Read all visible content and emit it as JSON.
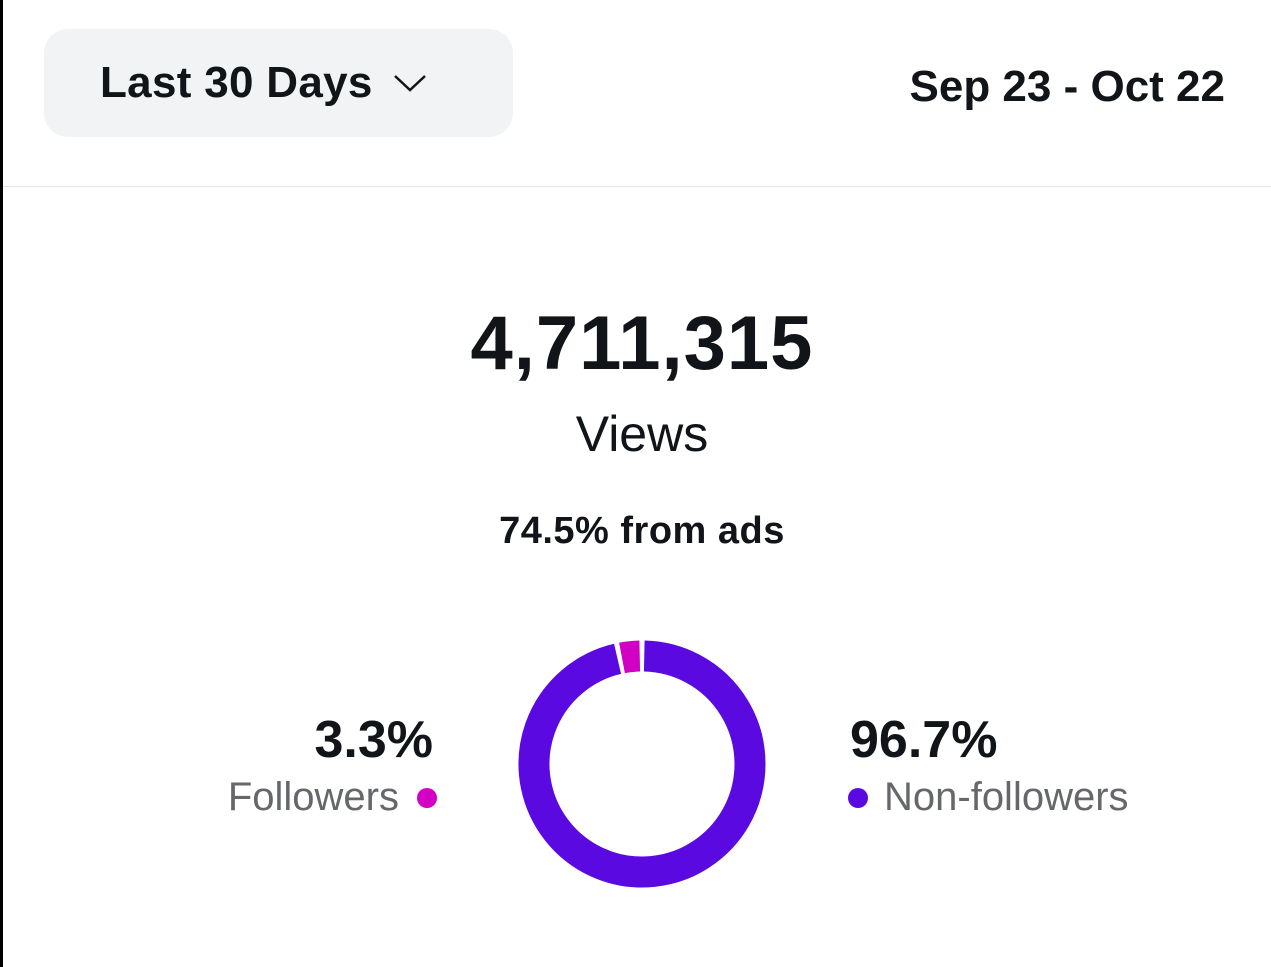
{
  "header": {
    "range_selector": "Last 30 Days",
    "date_range": "Sep 23 - Oct 22"
  },
  "summary": {
    "total": "4,711,315",
    "metric": "Views",
    "ads_note": "74.5% from ads"
  },
  "chart_data": {
    "type": "pie",
    "variant": "donut",
    "slices": [
      {
        "name": "Followers",
        "label": "3.3%",
        "value": 3.3,
        "color": "#d100c4"
      },
      {
        "name": "Non-followers",
        "label": "96.7%",
        "value": 96.7,
        "color": "#5a0ae0"
      }
    ]
  }
}
